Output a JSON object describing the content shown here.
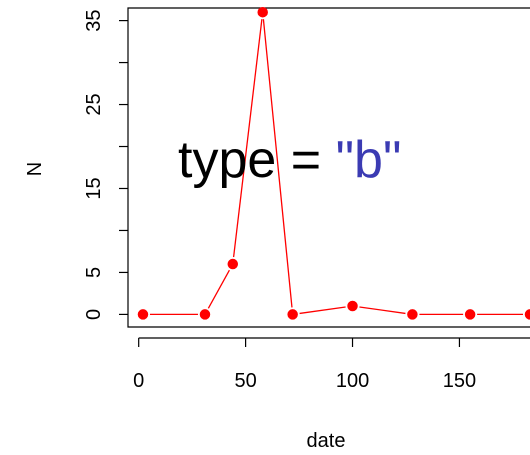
{
  "chart_data": {
    "type": "line",
    "plot_style": "both points and lines",
    "xlabel": "date",
    "ylabel": "N",
    "xlim": [
      -5,
      183
    ],
    "ylim": [
      -1.5,
      36.5
    ],
    "x_ticks": [
      0,
      50,
      100,
      150
    ],
    "y_ticks": [
      0,
      5,
      15,
      25,
      35
    ],
    "grid": false,
    "colors": {
      "series": "#ff0000",
      "axes": "#000000",
      "annotation_text": "#000000",
      "annotation_string": "#3b3bb3"
    },
    "series": [
      {
        "x": [
          2,
          31,
          44,
          58,
          72,
          100,
          128,
          155,
          183
        ],
        "values": [
          0,
          0,
          6,
          36,
          0,
          1,
          0,
          0,
          0
        ]
      }
    ],
    "annotation": {
      "prefix": "type = ",
      "value": "\"b\""
    }
  }
}
